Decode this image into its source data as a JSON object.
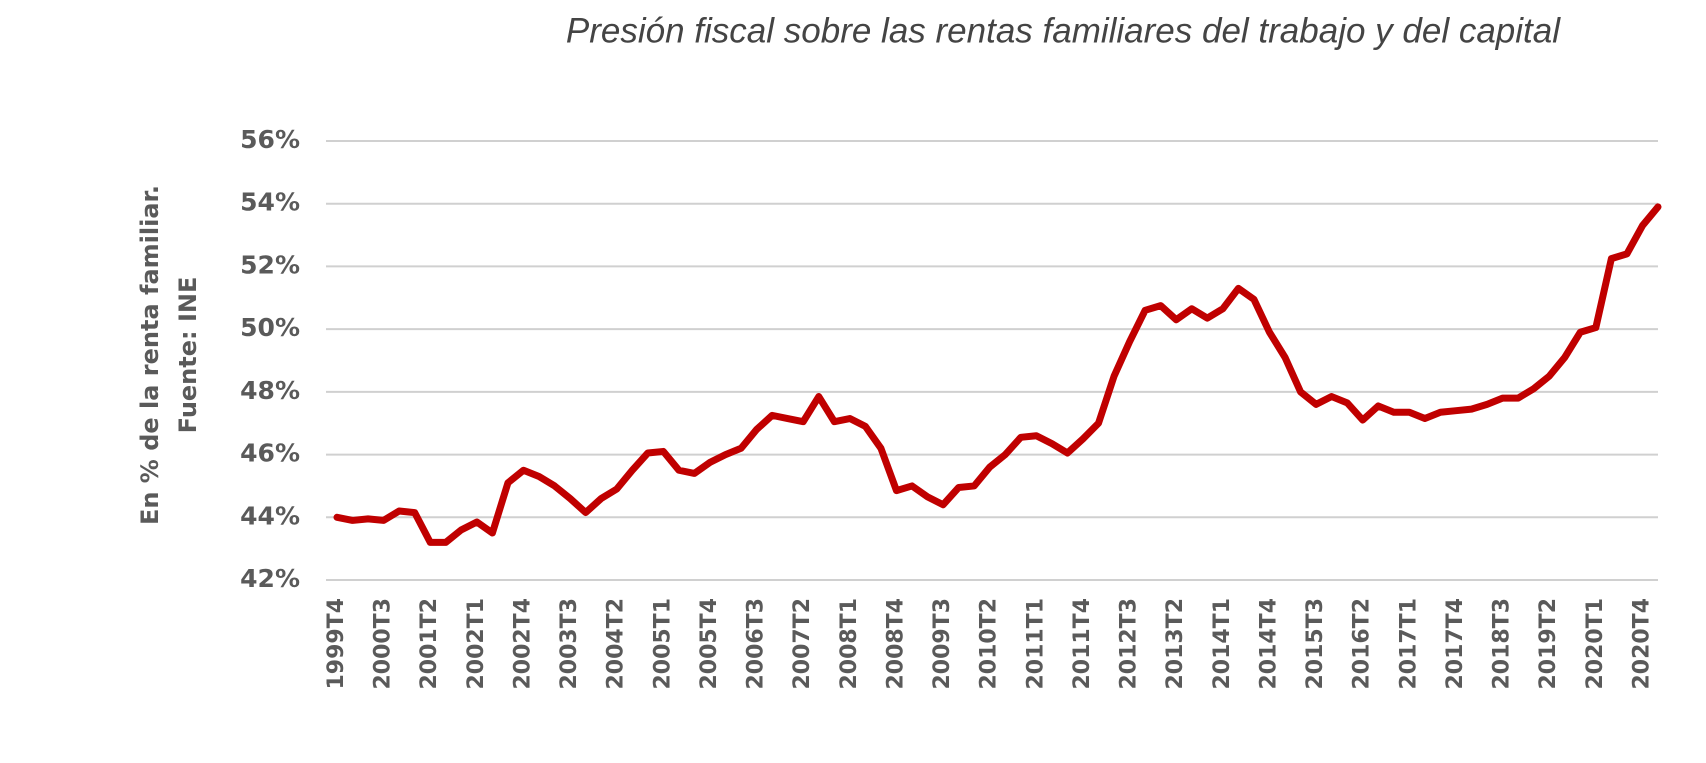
{
  "chart_data": {
    "type": "line",
    "title": "Presión fiscal sobre las rentas familiares del trabajo y del capital",
    "y_label": [
      "En % de la renta familiar.",
      "Fuente: INE"
    ],
    "categories": [
      "1999T4",
      null,
      null,
      "2000T3",
      null,
      null,
      "2001T2",
      null,
      null,
      "2002T1",
      null,
      null,
      "2002T4",
      null,
      null,
      "2003T3",
      null,
      null,
      "2004T2",
      null,
      null,
      "2005T1",
      null,
      null,
      "2005T4",
      null,
      null,
      "2006T3",
      null,
      null,
      "2007T2",
      null,
      null,
      "2008T1",
      null,
      null,
      "2008T4",
      null,
      null,
      "2009T3",
      null,
      null,
      "2010T2",
      null,
      null,
      "2011T1",
      null,
      null,
      "2011T4",
      null,
      null,
      "2012T3",
      null,
      null,
      "2013T2",
      null,
      null,
      "2014T1",
      null,
      null,
      "2014T4",
      null,
      null,
      "2015T3",
      null,
      null,
      "2016T2",
      null,
      null,
      "2017T1",
      null,
      null,
      "2017T4",
      null,
      null,
      "2018T3",
      null,
      null,
      "2019T2",
      null,
      null,
      "2020T1",
      null,
      null,
      "2020T4",
      null
    ],
    "series": [
      {
        "color": "#c00000",
        "values": [
          44.0,
          43.9,
          43.95,
          43.9,
          44.2,
          44.15,
          43.2,
          43.2,
          43.6,
          43.85,
          43.5,
          45.1,
          45.5,
          45.3,
          45.0,
          44.6,
          44.15,
          44.6,
          44.9,
          45.5,
          46.05,
          46.1,
          45.5,
          45.4,
          45.75,
          46.0,
          46.2,
          46.8,
          47.25,
          47.15,
          47.05,
          47.85,
          47.05,
          47.15,
          46.9,
          46.2,
          44.85,
          45.0,
          44.65,
          44.4,
          44.95,
          45.0,
          45.6,
          46.0,
          46.55,
          46.6,
          46.35,
          46.05,
          46.5,
          47.0,
          48.5,
          49.6,
          50.6,
          50.75,
          50.3,
          50.65,
          50.35,
          50.65,
          51.3,
          50.95,
          49.9,
          49.1,
          48.0,
          47.6,
          47.85,
          47.65,
          47.1,
          47.55,
          47.35,
          47.35,
          47.15,
          47.35,
          47.4,
          47.45,
          47.6,
          47.8,
          47.8,
          48.1,
          48.5,
          49.1,
          49.9,
          50.05,
          52.25,
          52.4,
          53.3,
          53.9
        ]
      }
    ],
    "ylim": [
      42,
      56
    ],
    "yticks": [
      {
        "value": 42,
        "label": "42%"
      },
      {
        "value": 44,
        "label": "44%"
      },
      {
        "value": 46,
        "label": "46%"
      },
      {
        "value": 48,
        "label": "48%"
      },
      {
        "value": 50,
        "label": "50%"
      },
      {
        "value": 52,
        "label": "52%"
      },
      {
        "value": 54,
        "label": "54%"
      },
      {
        "value": 56,
        "label": "56%"
      }
    ],
    "grid": true
  }
}
